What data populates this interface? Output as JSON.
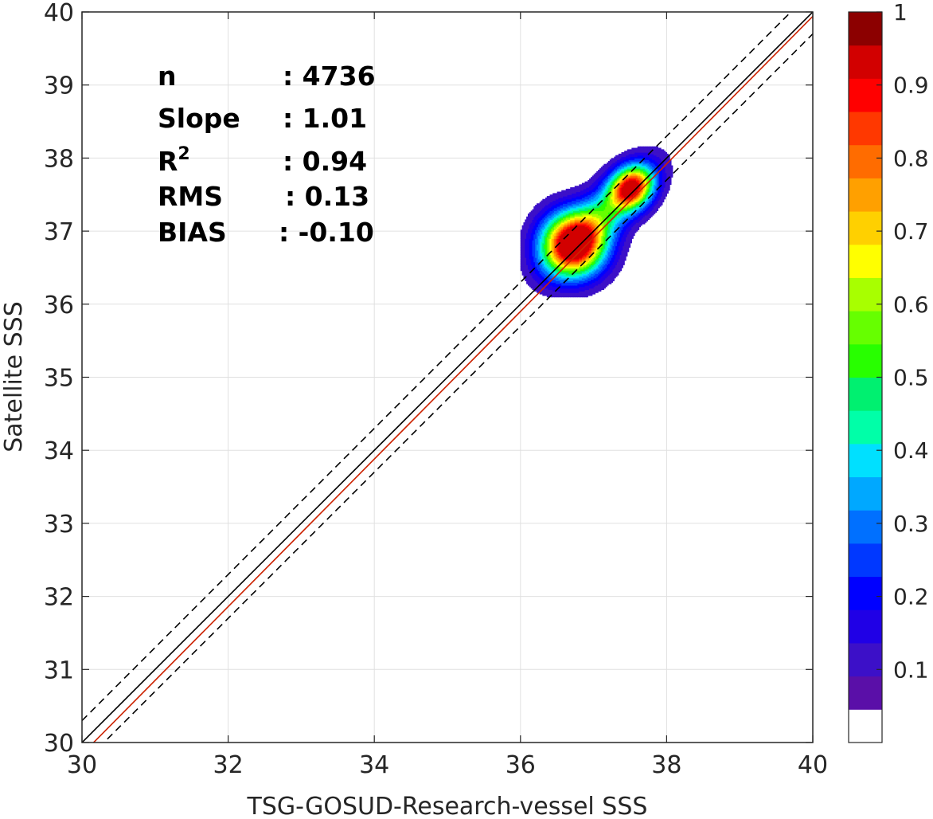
{
  "chart_data": {
    "type": "heatmap",
    "xlabel": "TSG-GOSUD-Research-vessel SSS",
    "ylabel": "Satellite SSS",
    "xlim": [
      30,
      40
    ],
    "ylim": [
      30,
      40
    ],
    "x_ticks": [
      "30",
      "32",
      "34",
      "36",
      "38",
      "40"
    ],
    "y_ticks": [
      "30",
      "31",
      "32",
      "33",
      "34",
      "35",
      "36",
      "37",
      "38",
      "39",
      "40"
    ],
    "grid": true,
    "stats": [
      {
        "label": "n",
        "value": ": 4736"
      },
      {
        "label": "Slope",
        "value": ": 1.01"
      },
      {
        "label": "R",
        "superscript": "2",
        "value": ": 0.94"
      },
      {
        "label": "RMS",
        "value": ": 0.13"
      },
      {
        "label": "BIAS",
        "value": ": -0.10"
      }
    ],
    "lines": [
      {
        "kind": "identity",
        "color": "#000000",
        "slope": 1,
        "intercept": 0,
        "dash": false
      },
      {
        "kind": "identity+0.3",
        "color": "#000000",
        "slope": 1,
        "intercept": 0.3,
        "dash": true
      },
      {
        "kind": "identity-0.3",
        "color": "#000000",
        "slope": 1,
        "intercept": -0.3,
        "dash": true
      },
      {
        "kind": "regression",
        "color": "#cc2200",
        "slope": 1.01,
        "intercept": -0.46,
        "dash": false
      }
    ],
    "density_peaks": [
      {
        "x": 36.72,
        "y": 36.82,
        "sx": 0.3,
        "sy": 0.3,
        "rot": 45,
        "amp": 1.0
      },
      {
        "x": 37.52,
        "y": 37.6,
        "sx": 0.22,
        "sy": 0.18,
        "rot": 45,
        "amp": 0.85
      },
      {
        "x": 37.1,
        "y": 37.2,
        "sx": 0.6,
        "sy": 0.22,
        "rot": 45,
        "amp": 0.38
      }
    ],
    "contour_levels": [
      0.05,
      0.1,
      0.15,
      0.2,
      0.25,
      0.3,
      0.35,
      0.4,
      0.45,
      0.5,
      0.55,
      0.6,
      0.65,
      0.7,
      0.75,
      0.8,
      0.85,
      0.9,
      0.95
    ],
    "colorbar": {
      "range": [
        0,
        1
      ],
      "ticks": [
        "0.1",
        "0.2",
        "0.3",
        "0.4",
        "0.5",
        "0.6",
        "0.7",
        "0.8",
        "0.9",
        "1"
      ],
      "colors": [
        "#ffffff",
        "#5a0fa8",
        "#3c10c8",
        "#2000e6",
        "#0000ff",
        "#0038ff",
        "#0070ff",
        "#00a8ff",
        "#00e0ff",
        "#00ffa8",
        "#00f070",
        "#28ff00",
        "#66ff00",
        "#a8ff00",
        "#ffff00",
        "#ffd000",
        "#ffa000",
        "#ff6c00",
        "#ff3800",
        "#ff0000",
        "#d20000",
        "#8c0000"
      ]
    }
  }
}
